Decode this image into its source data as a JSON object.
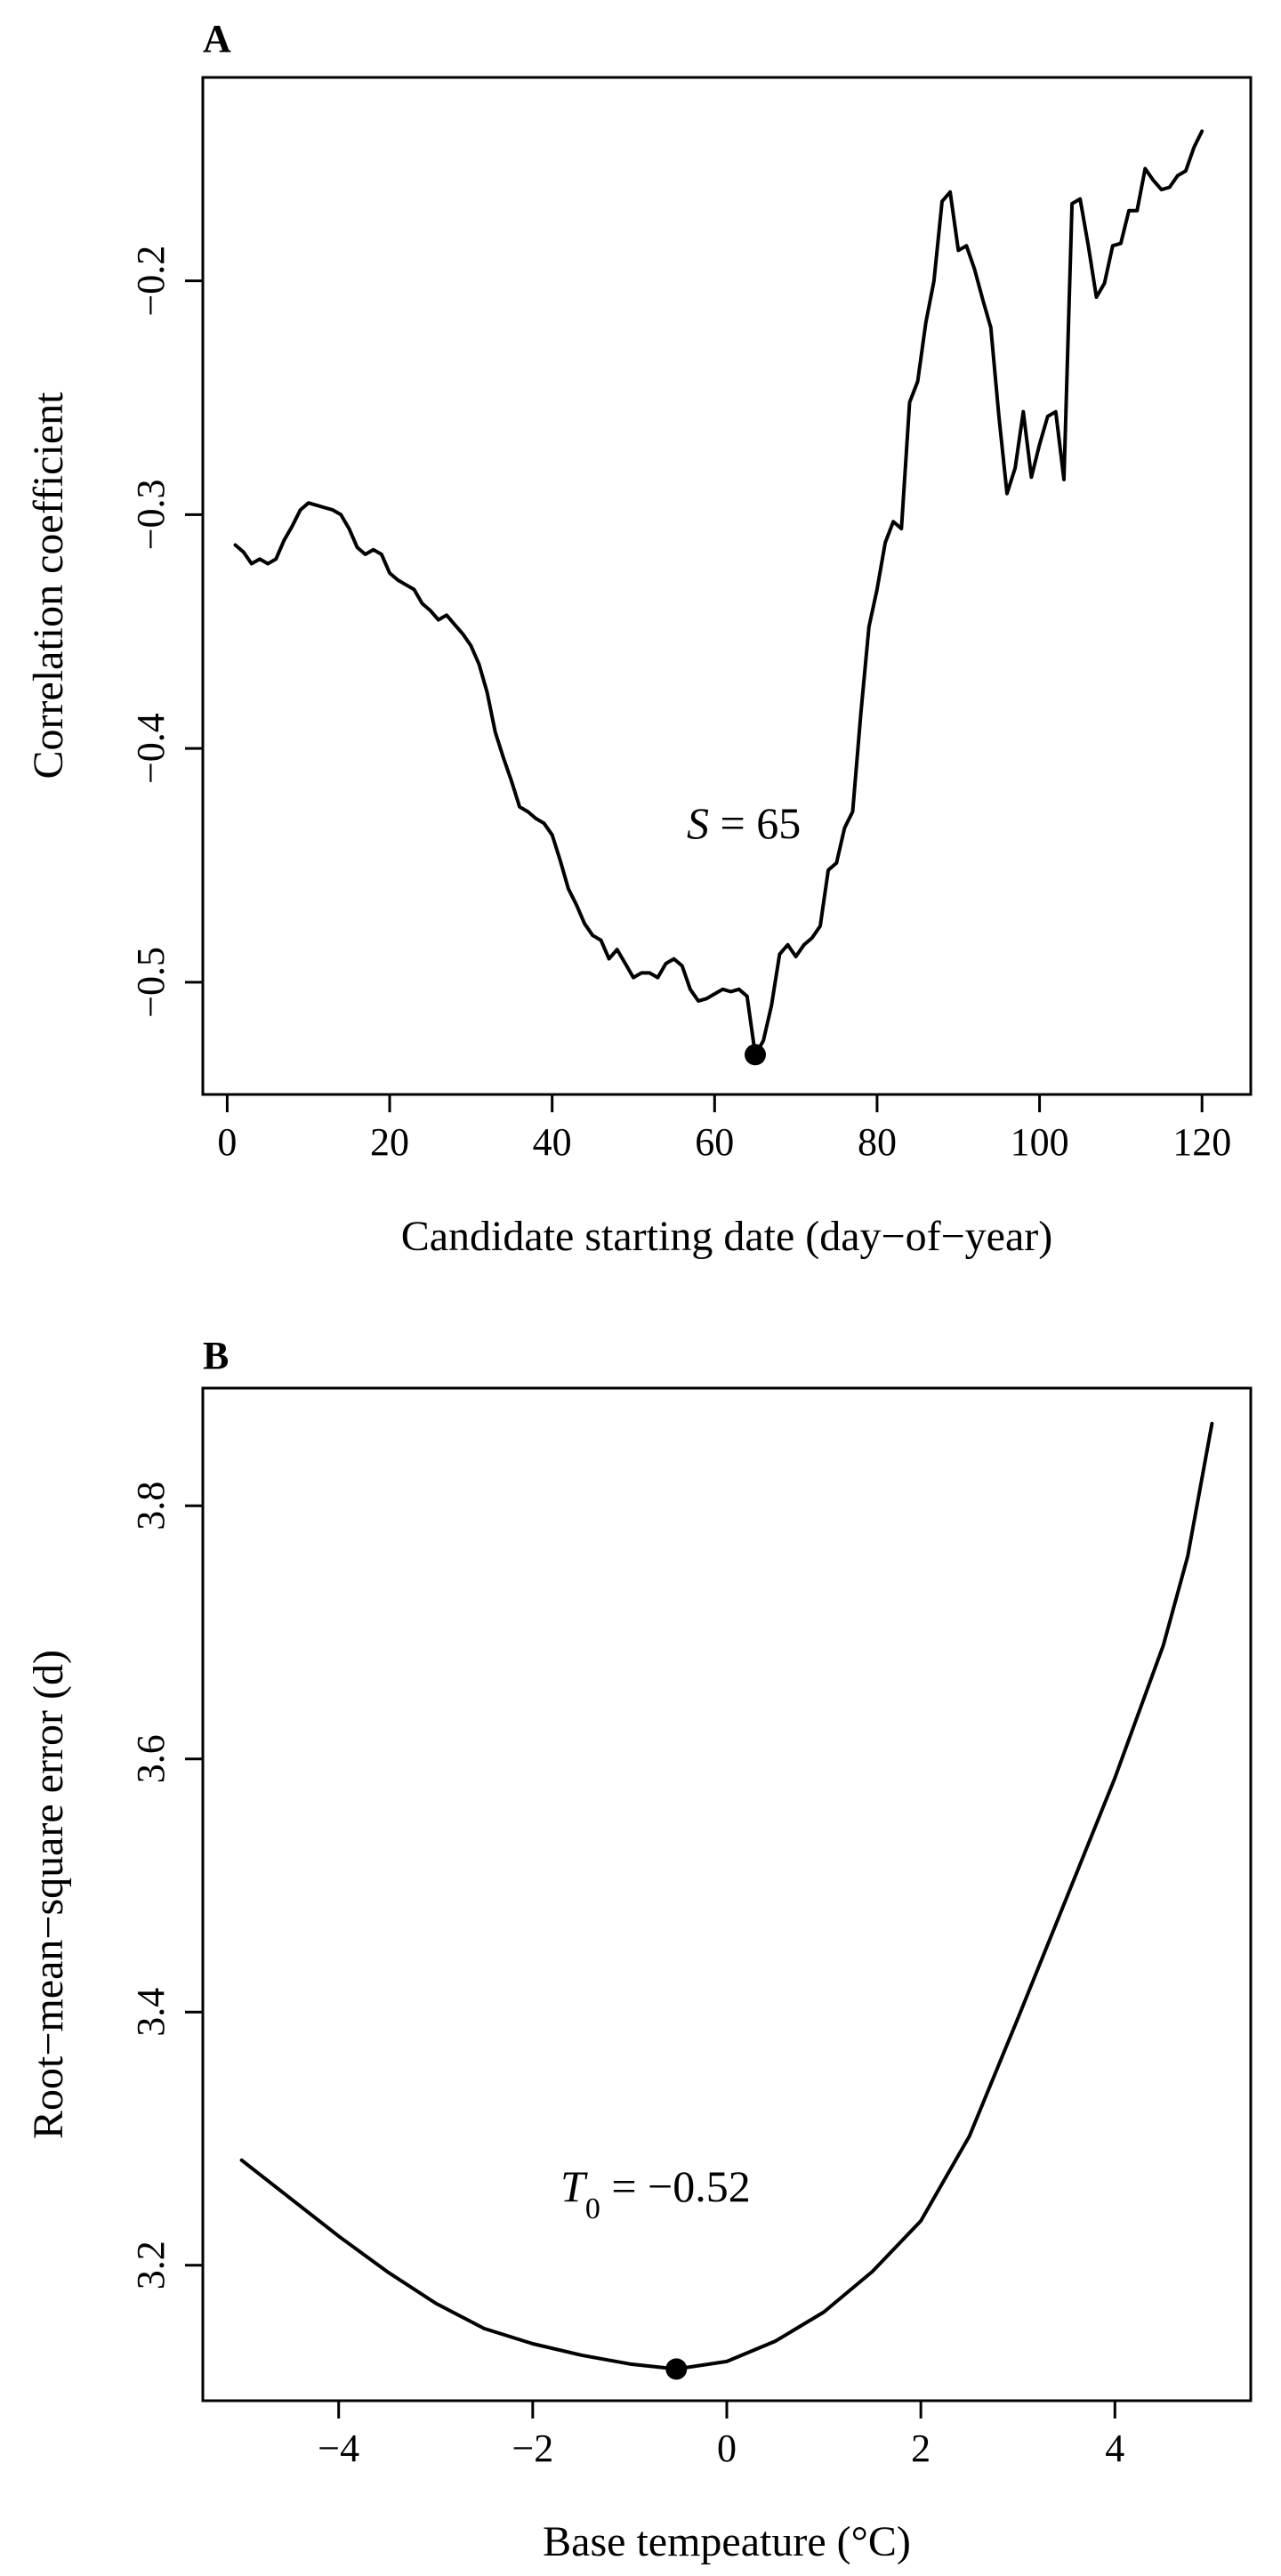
{
  "chart_data": [
    {
      "panel": "A",
      "type": "line",
      "xlabel": "Candidate starting date (day−of−year)",
      "ylabel": "Correlation coefficient",
      "xlim": [
        -3,
        126
      ],
      "ylim": [
        -0.548,
        -0.113
      ],
      "xticks": [
        0,
        20,
        40,
        60,
        80,
        100,
        120
      ],
      "xtick_labels": [
        "0",
        "20",
        "40",
        "60",
        "80",
        "100",
        "120"
      ],
      "yticks": [
        -0.5,
        -0.4,
        -0.3,
        -0.2
      ],
      "ytick_labels": [
        "−0.5",
        "−0.4",
        "−0.3",
        "−0.2"
      ],
      "grid": false,
      "annotation": {
        "var": "S",
        "rest": " = 65"
      },
      "highlight": {
        "x": 65,
        "y": -0.531
      },
      "x": [
        1,
        2,
        3,
        4,
        5,
        6,
        7,
        8,
        9,
        10,
        11,
        12,
        13,
        14,
        15,
        16,
        17,
        18,
        19,
        20,
        21,
        22,
        23,
        24,
        25,
        26,
        27,
        28,
        29,
        30,
        31,
        32,
        33,
        34,
        35,
        36,
        37,
        38,
        39,
        40,
        41,
        42,
        43,
        44,
        45,
        46,
        47,
        48,
        49,
        50,
        51,
        52,
        53,
        54,
        55,
        56,
        57,
        58,
        59,
        60,
        61,
        62,
        63,
        64,
        65,
        66,
        67,
        68,
        69,
        70,
        71,
        72,
        73,
        74,
        75,
        76,
        77,
        78,
        79,
        80,
        81,
        82,
        83,
        84,
        85,
        86,
        87,
        88,
        89,
        90,
        91,
        92,
        93,
        94,
        95,
        96,
        97,
        98,
        99,
        100,
        101,
        102,
        103,
        104,
        105,
        106,
        107,
        108,
        109,
        110,
        111,
        112,
        113,
        114,
        115,
        116,
        117,
        118,
        119,
        120
      ],
      "y": [
        -0.313,
        -0.316,
        -0.321,
        -0.319,
        -0.321,
        -0.319,
        -0.311,
        -0.305,
        -0.298,
        -0.295,
        -0.296,
        -0.297,
        -0.298,
        -0.3,
        -0.306,
        -0.314,
        -0.317,
        -0.315,
        -0.317,
        -0.325,
        -0.328,
        -0.33,
        -0.332,
        -0.338,
        -0.341,
        -0.345,
        -0.343,
        -0.347,
        -0.351,
        -0.356,
        -0.364,
        -0.376,
        -0.393,
        -0.404,
        -0.414,
        -0.425,
        -0.427,
        -0.43,
        -0.432,
        -0.437,
        -0.448,
        -0.46,
        -0.467,
        -0.475,
        -0.48,
        -0.482,
        -0.49,
        -0.486,
        -0.492,
        -0.498,
        -0.496,
        -0.496,
        -0.498,
        -0.492,
        -0.49,
        -0.493,
        -0.503,
        -0.508,
        -0.507,
        -0.505,
        -0.503,
        -0.504,
        -0.503,
        -0.506,
        -0.531,
        -0.525,
        -0.51,
        -0.488,
        -0.484,
        -0.489,
        -0.484,
        -0.481,
        -0.476,
        -0.452,
        -0.449,
        -0.434,
        -0.427,
        -0.385,
        -0.348,
        -0.332,
        -0.312,
        -0.303,
        -0.306,
        -0.252,
        -0.243,
        -0.218,
        -0.2,
        -0.166,
        -0.162,
        -0.187,
        -0.185,
        -0.195,
        -0.208,
        -0.22,
        -0.258,
        -0.291,
        -0.28,
        -0.256,
        -0.284,
        -0.27,
        -0.258,
        -0.256,
        -0.285,
        -0.167,
        -0.165,
        -0.185,
        -0.207,
        -0.201,
        -0.185,
        -0.184,
        -0.17,
        -0.17,
        -0.152,
        -0.157,
        -0.161,
        -0.16,
        -0.155,
        -0.153,
        -0.143,
        -0.136
      ]
    },
    {
      "panel": "B",
      "type": "line",
      "xlabel": "Base tempeature (°C)",
      "ylabel": "Root−mean−square error (d)",
      "xlim": [
        -5.4,
        5.4
      ],
      "ylim": [
        3.093,
        3.893
      ],
      "xticks": [
        -4,
        -2,
        0,
        2,
        4
      ],
      "xtick_labels": [
        "−4",
        "−2",
        "0",
        "2",
        "4"
      ],
      "yticks": [
        3.2,
        3.4,
        3.6,
        3.8
      ],
      "ytick_labels": [
        "3.2",
        "3.4",
        "3.6",
        "3.8"
      ],
      "grid": false,
      "annotation": {
        "var": "T",
        "sub": "0",
        "rest": " = −0.52"
      },
      "highlight": {
        "x": -0.52,
        "y": 3.118
      },
      "x": [
        -5,
        -4.5,
        -4,
        -3.5,
        -3,
        -2.5,
        -2,
        -1.5,
        -1,
        -0.52,
        0,
        0.5,
        1,
        1.5,
        2,
        2.5,
        3,
        3.5,
        4,
        4.5,
        4.75,
        5
      ],
      "y": [
        3.283,
        3.253,
        3.223,
        3.195,
        3.17,
        3.15,
        3.138,
        3.129,
        3.122,
        3.118,
        3.124,
        3.14,
        3.163,
        3.195,
        3.235,
        3.302,
        3.395,
        3.49,
        3.585,
        3.69,
        3.76,
        3.865
      ]
    }
  ]
}
